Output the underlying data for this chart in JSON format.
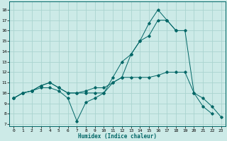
{
  "xlabel": "Humidex (Indice chaleur)",
  "bg_color": "#cceae7",
  "grid_color": "#aad4d0",
  "line_color": "#006666",
  "xlim": [
    -0.5,
    23.5
  ],
  "ylim": [
    6.8,
    18.8
  ],
  "yticks": [
    7,
    8,
    9,
    10,
    11,
    12,
    13,
    14,
    15,
    16,
    17,
    18
  ],
  "xticks": [
    0,
    1,
    2,
    3,
    4,
    5,
    6,
    7,
    8,
    9,
    10,
    11,
    12,
    13,
    14,
    15,
    16,
    17,
    18,
    19,
    20,
    21,
    22,
    23
  ],
  "series": [
    {
      "x": [
        0,
        1,
        2,
        3,
        4,
        5,
        6,
        7,
        8,
        9,
        10,
        11,
        12,
        13,
        14,
        15,
        16,
        17,
        18
      ],
      "y": [
        9.5,
        10.0,
        10.2,
        10.5,
        10.5,
        10.2,
        9.5,
        7.3,
        9.1,
        9.5,
        10.0,
        11.5,
        13.0,
        13.7,
        15.0,
        16.7,
        18.0,
        17.0,
        16.0
      ]
    },
    {
      "x": [
        0,
        1,
        2,
        3,
        4,
        5,
        6,
        7,
        8,
        9,
        10,
        11,
        12,
        13,
        14,
        15,
        16,
        17,
        18,
        19,
        20,
        21,
        22
      ],
      "y": [
        9.5,
        10.0,
        10.2,
        10.7,
        11.0,
        10.5,
        10.0,
        10.0,
        10.0,
        10.0,
        10.0,
        11.0,
        11.5,
        11.5,
        11.5,
        11.5,
        11.7,
        12.0,
        12.0,
        12.0,
        10.0,
        8.7,
        8.0
      ]
    },
    {
      "x": [
        0,
        1,
        2,
        3,
        4,
        5,
        6,
        7,
        8,
        9,
        10,
        11,
        12,
        13,
        14,
        15,
        16,
        17,
        18,
        19,
        20,
        21,
        22,
        23
      ],
      "y": [
        9.5,
        10.0,
        10.2,
        10.7,
        11.0,
        10.5,
        10.0,
        10.0,
        10.2,
        10.5,
        10.5,
        11.0,
        11.5,
        13.7,
        15.0,
        15.5,
        17.0,
        17.0,
        16.0,
        16.0,
        10.0,
        9.5,
        8.7,
        7.7
      ]
    }
  ]
}
